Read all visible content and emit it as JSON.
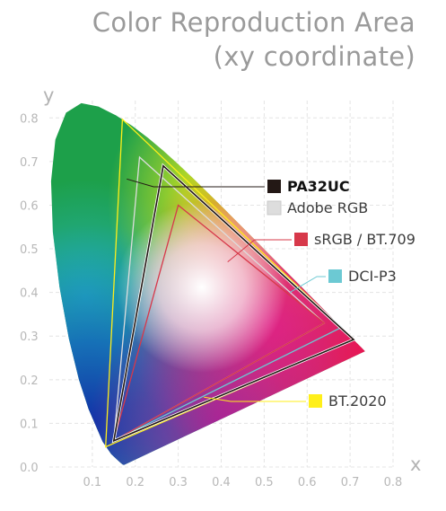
{
  "header": {
    "title_line1": "Color Reproduction Area",
    "title_line2": "(xy coordinate)"
  },
  "chart_data": {
    "type": "scatter",
    "title": "Color Reproduction Area (xy coordinate)",
    "xlabel": "x",
    "ylabel": "y",
    "xlim": [
      0.0,
      0.8
    ],
    "ylim": [
      0.0,
      0.85
    ],
    "xticks": [
      "0.1",
      "0.2",
      "0.3",
      "0.4",
      "0.5",
      "0.6",
      "0.7",
      "0.8"
    ],
    "yticks": [
      "0.0",
      "0.1",
      "0.2",
      "0.3",
      "0.4",
      "0.5",
      "0.6",
      "0.7",
      "0.8"
    ],
    "grid": true,
    "locus": [
      [
        0.1741,
        0.005
      ],
      [
        0.1736,
        0.0049
      ],
      [
        0.1714,
        0.0051
      ],
      [
        0.1689,
        0.0069
      ],
      [
        0.1644,
        0.0109
      ],
      [
        0.1566,
        0.0177
      ],
      [
        0.144,
        0.0297
      ],
      [
        0.1241,
        0.0578
      ],
      [
        0.0913,
        0.1327
      ],
      [
        0.0687,
        0.2007
      ],
      [
        0.0454,
        0.295
      ],
      [
        0.0235,
        0.4127
      ],
      [
        0.0082,
        0.5384
      ],
      [
        0.0039,
        0.6548
      ],
      [
        0.0139,
        0.7502
      ],
      [
        0.0389,
        0.812
      ],
      [
        0.0743,
        0.8338
      ],
      [
        0.1142,
        0.8262
      ],
      [
        0.1547,
        0.8059
      ],
      [
        0.1929,
        0.7816
      ],
      [
        0.2296,
        0.7543
      ],
      [
        0.2658,
        0.7243
      ],
      [
        0.3016,
        0.6923
      ],
      [
        0.3373,
        0.6589
      ],
      [
        0.3731,
        0.6245
      ],
      [
        0.4087,
        0.5896
      ],
      [
        0.4441,
        0.5547
      ],
      [
        0.4788,
        0.5202
      ],
      [
        0.5125,
        0.4866
      ],
      [
        0.5448,
        0.4544
      ],
      [
        0.5752,
        0.4242
      ],
      [
        0.6029,
        0.3965
      ],
      [
        0.627,
        0.3725
      ],
      [
        0.6482,
        0.3514
      ],
      [
        0.6658,
        0.334
      ],
      [
        0.6801,
        0.3197
      ],
      [
        0.6915,
        0.3083
      ],
      [
        0.7006,
        0.2993
      ],
      [
        0.7079,
        0.292
      ],
      [
        0.714,
        0.2859
      ],
      [
        0.719,
        0.2809
      ],
      [
        0.726,
        0.274
      ],
      [
        0.7347,
        0.2653
      ]
    ],
    "series": [
      {
        "name": "PA32UC",
        "color": "#231815",
        "points": [
          [
            0.708,
            0.292
          ],
          [
            0.265,
            0.69
          ],
          [
            0.15,
            0.06
          ]
        ]
      },
      {
        "name": "Adobe RGB",
        "color": "#dddddd",
        "points": [
          [
            0.64,
            0.33
          ],
          [
            0.21,
            0.71
          ],
          [
            0.15,
            0.06
          ]
        ]
      },
      {
        "name": "sRGB / BT.709",
        "color": "#d7384a",
        "points": [
          [
            0.64,
            0.33
          ],
          [
            0.3,
            0.6
          ],
          [
            0.15,
            0.06
          ]
        ]
      },
      {
        "name": "DCI-P3",
        "color": "#6cc9d3",
        "points": [
          [
            0.68,
            0.32
          ],
          [
            0.265,
            0.69
          ],
          [
            0.15,
            0.06
          ]
        ]
      },
      {
        "name": "BT.2020",
        "color": "#ffef1a",
        "points": [
          [
            0.708,
            0.292
          ],
          [
            0.17,
            0.797
          ],
          [
            0.131,
            0.046
          ]
        ]
      }
    ],
    "legend_placement": "right"
  }
}
